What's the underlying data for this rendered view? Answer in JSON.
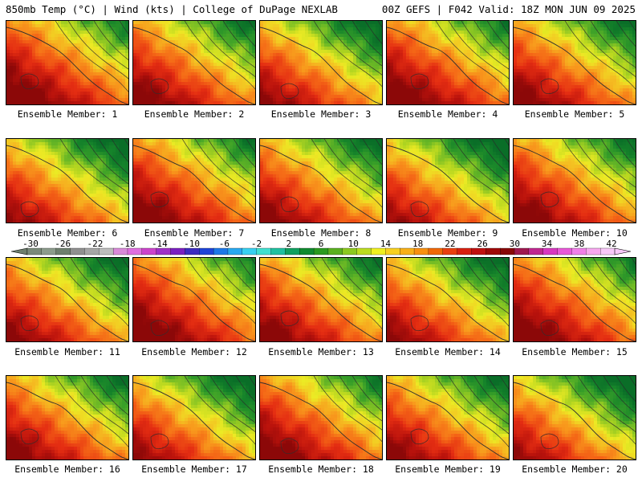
{
  "header": {
    "left": "850mb Temp (°C) | Wind (kts) | College of DuPage NEXLAB",
    "right": "00Z GEFS | F042 Valid: 18Z MON JUN 09 2025"
  },
  "colorbar": {
    "tick_labels": [
      "-30",
      "-26",
      "-22",
      "-18",
      "-14",
      "-10",
      "-6",
      "-2",
      "2",
      "6",
      "10",
      "14",
      "18",
      "22",
      "26",
      "30",
      "34",
      "38",
      "42"
    ],
    "colors": [
      "#7a8a7a",
      "#8c9c8c",
      "#6e7f6e",
      "#909090",
      "#a6a6a6",
      "#bdbdbd",
      "#d98ad9",
      "#e06ee0",
      "#cc44cc",
      "#a030c8",
      "#7a20c0",
      "#3c2cc0",
      "#1e44d8",
      "#1e78e8",
      "#28a8f0",
      "#38d0f0",
      "#40e0d0",
      "#20c0a0",
      "#10a060",
      "#108a30",
      "#2a9a20",
      "#5ab020",
      "#8cc820",
      "#bcdc20",
      "#f0f020",
      "#f8d020",
      "#f8b018",
      "#f89010",
      "#f06808",
      "#e84010",
      "#d82010",
      "#c01010",
      "#a00808",
      "#880808",
      "#a01850",
      "#c02890",
      "#d838c0",
      "#e858d8",
      "#f080e8",
      "#f8a8f0",
      "#f8c8f8"
    ]
  },
  "members": [
    {
      "label": "Ensemble Member: 1"
    },
    {
      "label": "Ensemble Member: 2"
    },
    {
      "label": "Ensemble Member: 3"
    },
    {
      "label": "Ensemble Member: 4"
    },
    {
      "label": "Ensemble Member: 5"
    },
    {
      "label": "Ensemble Member: 6"
    },
    {
      "label": "Ensemble Member: 7"
    },
    {
      "label": "Ensemble Member: 8"
    },
    {
      "label": "Ensemble Member: 9"
    },
    {
      "label": "Ensemble Member: 10"
    },
    {
      "label": "Ensemble Member: 11"
    },
    {
      "label": "Ensemble Member: 12"
    },
    {
      "label": "Ensemble Member: 13"
    },
    {
      "label": "Ensemble Member: 14"
    },
    {
      "label": "Ensemble Member: 15"
    },
    {
      "label": "Ensemble Member: 16"
    },
    {
      "label": "Ensemble Member: 17"
    },
    {
      "label": "Ensemble Member: 18"
    },
    {
      "label": "Ensemble Member: 19"
    },
    {
      "label": "Ensemble Member: 20"
    }
  ]
}
